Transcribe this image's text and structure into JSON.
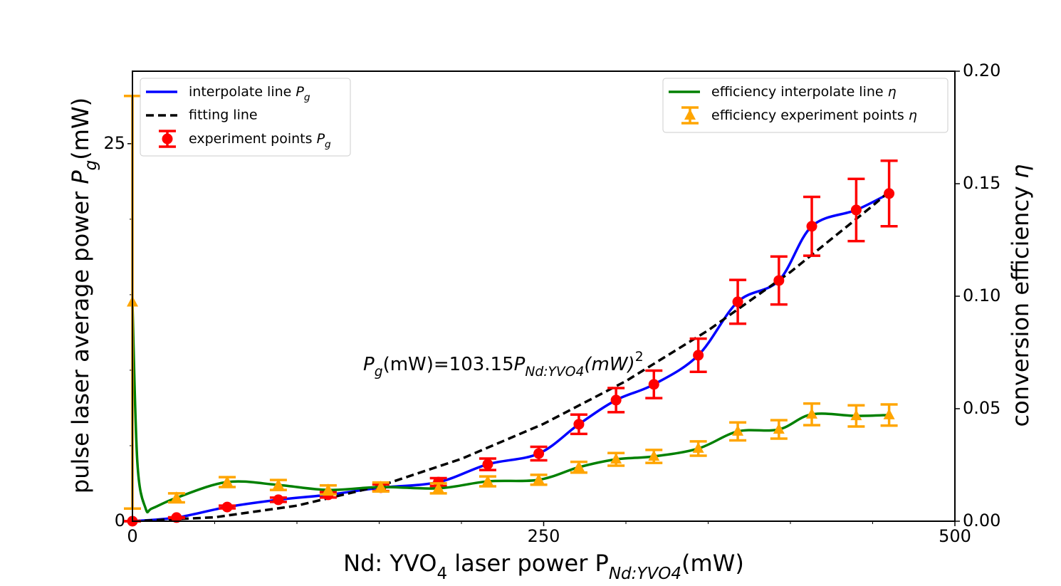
{
  "chart_data": {
    "type": "line",
    "x_label": [
      "Nd: YVO",
      "4",
      " laser power P",
      "Nd:YVO4",
      "(mW)"
    ],
    "y_label": [
      "pulse laser average power ",
      "P",
      "g",
      "(mW)"
    ],
    "y2_label": [
      "conversion efficiency ",
      "η"
    ],
    "annotation": [
      "P",
      "g",
      "(mW)=103.15",
      "P",
      "Nd:YVO4",
      "(mW)",
      "2"
    ],
    "xlim": [
      0,
      500
    ],
    "xticks": [
      0,
      250,
      500
    ],
    "xminor": [
      50,
      100,
      150,
      200,
      300,
      350,
      400,
      450
    ],
    "ylim": [
      0,
      29.8
    ],
    "yticks": [
      0,
      25
    ],
    "yminor": [
      5,
      10,
      15,
      20
    ],
    "y2lim": [
      0,
      0.2
    ],
    "y2ticks": [
      {
        "value": 0,
        "label": "0.00"
      },
      {
        "value": 0.05,
        "label": "0.05"
      },
      {
        "value": 0.1,
        "label": "0.10"
      },
      {
        "value": 0.15,
        "label": "0.15"
      },
      {
        "value": 0.2,
        "label": "0.20"
      }
    ],
    "series": [
      {
        "name": [
          "interpolate line ",
          "P",
          "g"
        ],
        "color": "#0000ff",
        "style": "solid",
        "legend": "upper left",
        "x": [
          0,
          26.8,
          57.6,
          88.7,
          119,
          151,
          186,
          216,
          247,
          271.4,
          294,
          317,
          344,
          368,
          393,
          413,
          440,
          460
        ],
        "values": [
          0,
          0.24,
          0.94,
          1.42,
          1.75,
          2.22,
          2.59,
          3.77,
          4.48,
          6.42,
          8.02,
          9.06,
          10.99,
          14.53,
          15.94,
          19.53,
          20.61,
          21.7
        ]
      },
      {
        "name": "fitting line",
        "color": "#000000",
        "style": "dashed",
        "legend": "upper left",
        "x": [
          0,
          50,
          100,
          150,
          200,
          250,
          300,
          350,
          400,
          450,
          460
        ],
        "values": [
          0,
          0.258,
          1.03,
          2.32,
          4.13,
          6.45,
          9.28,
          12.64,
          16.5,
          20.89,
          21.83
        ]
      },
      {
        "name": [
          "experiment points ",
          "P",
          "g"
        ],
        "color": "#ff0000",
        "style": "errorbar",
        "marker": "circle",
        "legend": "upper left",
        "x": [
          0,
          26.8,
          57.6,
          88.7,
          119,
          151,
          186,
          216,
          247,
          271.4,
          294,
          317,
          344,
          368,
          393,
          413,
          440,
          460
        ],
        "values": [
          0,
          0.24,
          0.94,
          1.42,
          1.75,
          2.22,
          2.59,
          3.77,
          4.48,
          6.42,
          8.02,
          9.06,
          10.99,
          14.53,
          15.94,
          19.53,
          20.61,
          21.7
        ],
        "errors": [
          0,
          0.02,
          0.09,
          0.14,
          0.18,
          0.22,
          0.26,
          0.38,
          0.45,
          0.64,
          0.8,
          0.91,
          1.1,
          1.45,
          1.59,
          1.95,
          2.06,
          2.17
        ]
      },
      {
        "name": [
          "efficiency interpolate line ",
          "η"
        ],
        "color": "#008000",
        "style": "solid",
        "axis": "y2",
        "legend": "upper right",
        "x": [
          0,
          3,
          8,
          12,
          26.8,
          57.6,
          88.7,
          119,
          151,
          186,
          216,
          247,
          271.4,
          294,
          317,
          344,
          368,
          393,
          413,
          440,
          460
        ],
        "values": [
          0.097,
          0.026,
          0.0057,
          0.0057,
          0.0104,
          0.0174,
          0.0161,
          0.0139,
          0.0152,
          0.0146,
          0.0177,
          0.0184,
          0.024,
          0.0275,
          0.0288,
          0.0323,
          0.0399,
          0.0408,
          0.0475,
          0.0468,
          0.0472
        ]
      },
      {
        "name": [
          "efficiency experiment points ",
          "η"
        ],
        "color": "#ffa500",
        "style": "errorbar",
        "marker": "triangle",
        "axis": "y2",
        "legend": "upper right",
        "x": [
          0,
          26.8,
          57.6,
          88.7,
          119,
          151,
          186,
          216,
          247,
          271.4,
          294,
          317,
          344,
          368,
          393,
          413,
          440,
          460
        ],
        "values": [
          0.0973,
          0.0104,
          0.0174,
          0.0161,
          0.0139,
          0.0152,
          0.0146,
          0.0177,
          0.0184,
          0.024,
          0.0275,
          0.0288,
          0.0323,
          0.0399,
          0.0408,
          0.0475,
          0.0468,
          0.0472
        ],
        "errors": [
          0.0917,
          0.002,
          0.0022,
          0.0022,
          0.002,
          0.002,
          0.0022,
          0.0022,
          0.0022,
          0.0024,
          0.0028,
          0.0029,
          0.0032,
          0.004,
          0.0041,
          0.0048,
          0.0047,
          0.0047
        ]
      }
    ]
  }
}
